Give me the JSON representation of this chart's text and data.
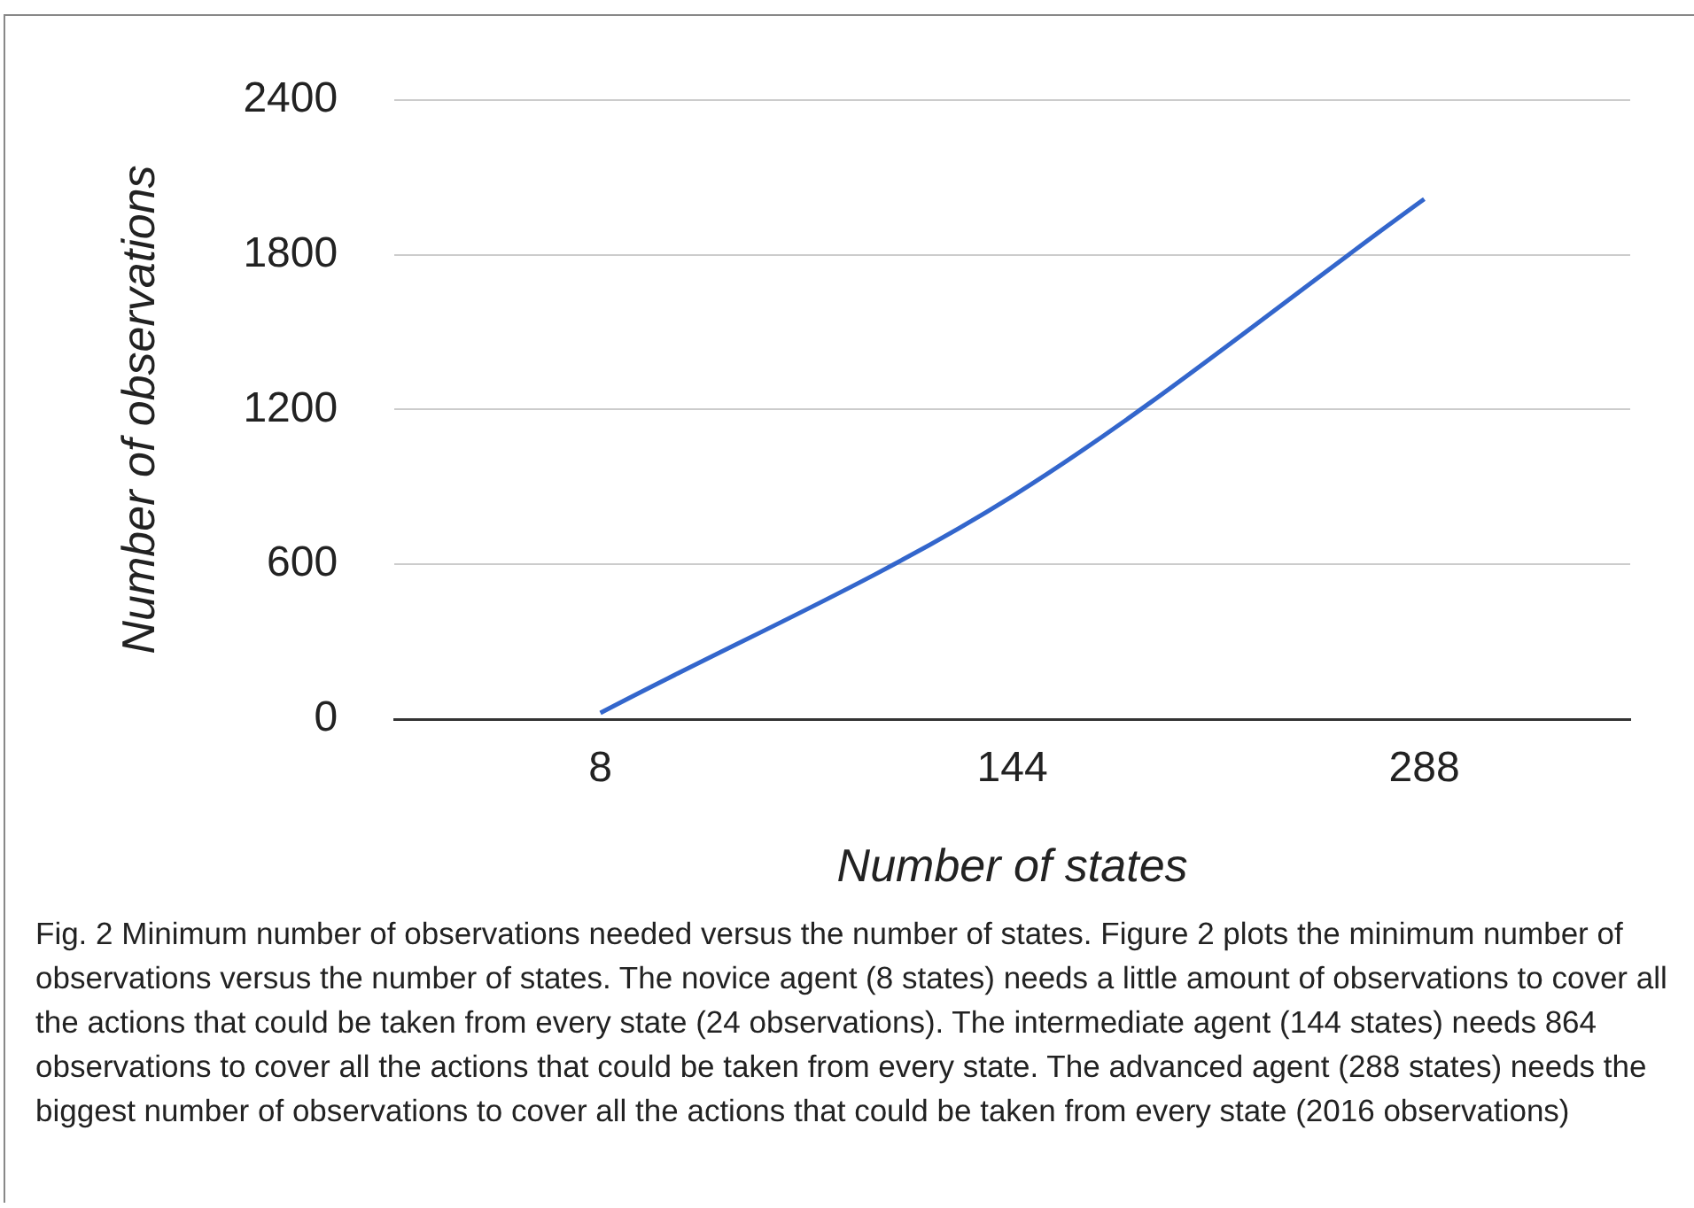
{
  "chart_data": {
    "type": "line",
    "xlabel": "Number of states",
    "ylabel": "Number of observations",
    "categories": [
      "8",
      "144",
      "288"
    ],
    "series": [
      {
        "color": "#3366cc",
        "values": [
          24,
          864,
          2016
        ]
      }
    ],
    "ylim": [
      0,
      2400
    ],
    "yticks": [
      0,
      600,
      1200,
      1800,
      2400
    ],
    "grid": "y",
    "legend": false,
    "marker": "none",
    "annotations": [
      "Fig. 2  Minimum number of observations needed versus the number of states. Figure 2 plots the minimum number of observations versus the number of states. The novice agent (8 states) needs a little amount of observations to cover all the actions that could be taken from every state (24 observations). The intermediate agent (144 states) needs 864 observations to cover all the actions that could be taken from every state. The advanced agent (288 states) needs the biggest number of observations to cover all the actions that could be taken from every state (2016 observations)"
    ]
  }
}
